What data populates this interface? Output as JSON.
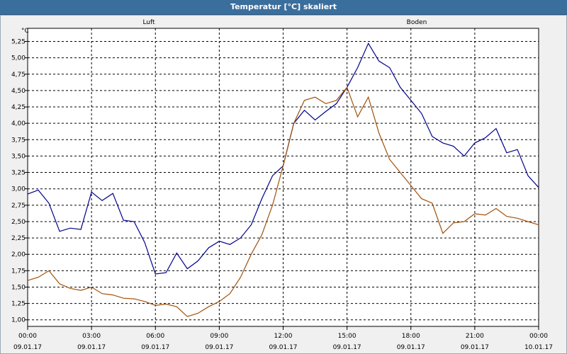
{
  "window": {
    "title": "Temperatur [°C] skaliert"
  },
  "chart_data": {
    "type": "line",
    "title": "Temperatur [°C] skaliert",
    "ylabel": "°C",
    "ylim": [
      0.9,
      5.45
    ],
    "yticks": [
      "1,00",
      "1,25",
      "1,50",
      "1,75",
      "2,00",
      "2,25",
      "2,50",
      "2,75",
      "3,00",
      "3,25",
      "3,50",
      "3,75",
      "4,00",
      "4,25",
      "4,50",
      "4,75",
      "5,00",
      "5,25"
    ],
    "xlim": [
      "09.01.17 00:00",
      "10.01.17 00:00"
    ],
    "xticks": [
      {
        "time": "00:00",
        "date": "09.01.17"
      },
      {
        "time": "03:00",
        "date": "09.01.17"
      },
      {
        "time": "06:00",
        "date": "09.01.17"
      },
      {
        "time": "09:00",
        "date": "09.01.17"
      },
      {
        "time": "12:00",
        "date": "09.01.17"
      },
      {
        "time": "15:00",
        "date": "09.01.17"
      },
      {
        "time": "18:00",
        "date": "09.01.17"
      },
      {
        "time": "21:00",
        "date": "09.01.17"
      },
      {
        "time": "00:00",
        "date": "10.01.17"
      }
    ],
    "grid": true,
    "x": [
      "00:00",
      "00:30",
      "01:00",
      "01:30",
      "02:00",
      "02:30",
      "03:00",
      "03:30",
      "04:00",
      "04:30",
      "05:00",
      "05:30",
      "06:00",
      "06:30",
      "07:00",
      "07:30",
      "08:00",
      "08:30",
      "09:00",
      "09:30",
      "10:00",
      "10:30",
      "11:00",
      "11:30",
      "12:00",
      "12:30",
      "13:00",
      "13:30",
      "14:00",
      "14:30",
      "15:00",
      "15:30",
      "16:00",
      "16:30",
      "17:00",
      "17:30",
      "18:00",
      "18:30",
      "19:00",
      "19:30",
      "20:00",
      "20:30",
      "21:00",
      "21:30",
      "22:00",
      "22:30",
      "23:00",
      "23:30",
      "24:00"
    ],
    "series": [
      {
        "name": "Luft",
        "color": "#00008b",
        "values": [
          2.92,
          2.98,
          2.78,
          2.35,
          2.4,
          2.38,
          2.95,
          2.82,
          2.93,
          2.52,
          2.5,
          2.18,
          1.7,
          1.72,
          2.02,
          1.78,
          1.9,
          2.1,
          2.2,
          2.15,
          2.25,
          2.45,
          2.85,
          3.2,
          3.35,
          4.0,
          4.2,
          4.05,
          4.18,
          4.3,
          4.55,
          4.85,
          5.22,
          4.95,
          4.85,
          4.55,
          4.35,
          4.15,
          3.8,
          3.7,
          3.65,
          3.5,
          3.7,
          3.78,
          3.92,
          3.55,
          3.6,
          3.2,
          3.02
        ]
      },
      {
        "name": "Boden",
        "color": "#a0520a",
        "values": [
          1.6,
          1.65,
          1.75,
          1.55,
          1.48,
          1.45,
          1.5,
          1.4,
          1.38,
          1.33,
          1.32,
          1.28,
          1.22,
          1.24,
          1.2,
          1.05,
          1.1,
          1.2,
          1.28,
          1.4,
          1.65,
          2.0,
          2.3,
          2.75,
          3.35,
          4.0,
          4.35,
          4.4,
          4.3,
          4.35,
          4.55,
          4.1,
          4.4,
          3.85,
          3.45,
          3.25,
          3.05,
          2.85,
          2.78,
          2.32,
          2.48,
          2.5,
          2.62,
          2.6,
          2.7,
          2.58,
          2.55,
          2.5,
          2.45
        ]
      }
    ]
  }
}
